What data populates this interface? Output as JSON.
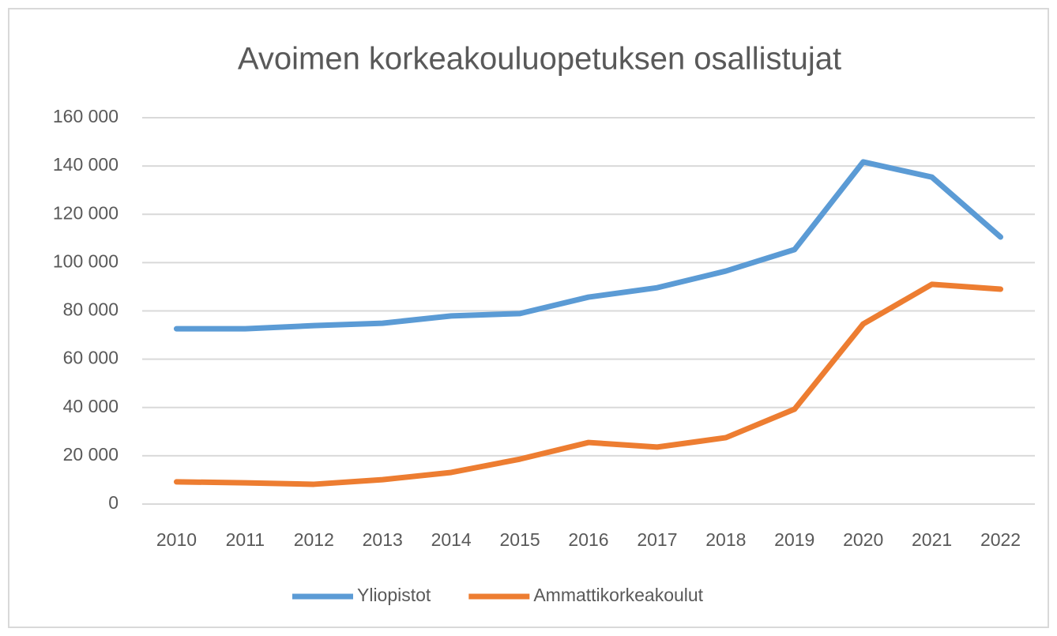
{
  "chart_data": {
    "type": "line",
    "title": "Avoimen korkeakouluopetuksen  osallistujat",
    "categories": [
      "2010",
      "2011",
      "2012",
      "2013",
      "2014",
      "2015",
      "2016",
      "2017",
      "2018",
      "2019",
      "2020",
      "2021",
      "2022"
    ],
    "series": [
      {
        "name": "Yliopistot",
        "color": "#5b9bd5",
        "values": [
          72600,
          72600,
          73900,
          74900,
          77900,
          78900,
          85700,
          89600,
          96500,
          105400,
          141700,
          135400,
          110600
        ]
      },
      {
        "name": "Ammattikorkeakoulut",
        "color": "#ed7d31",
        "values": [
          9200,
          8800,
          8200,
          10100,
          13100,
          18600,
          25500,
          23600,
          27500,
          39300,
          74600,
          91000,
          89000
        ]
      }
    ],
    "ylim": [
      0,
      160000
    ],
    "yticks": [
      0,
      {
        "value": 20000,
        "label": "20 000"
      },
      {
        "value": 40000,
        "label": "40 000"
      },
      {
        "value": 60000,
        "label": "60 000"
      },
      {
        "value": 80000,
        "label": "80 000"
      },
      {
        "value": 100000,
        "label": "100 000"
      },
      {
        "value": 120000,
        "label": "120 000"
      },
      {
        "value": 140000,
        "label": "140 000"
      },
      {
        "value": 160000,
        "label": "160 000"
      }
    ],
    "grid": true,
    "legend": "bottom"
  }
}
